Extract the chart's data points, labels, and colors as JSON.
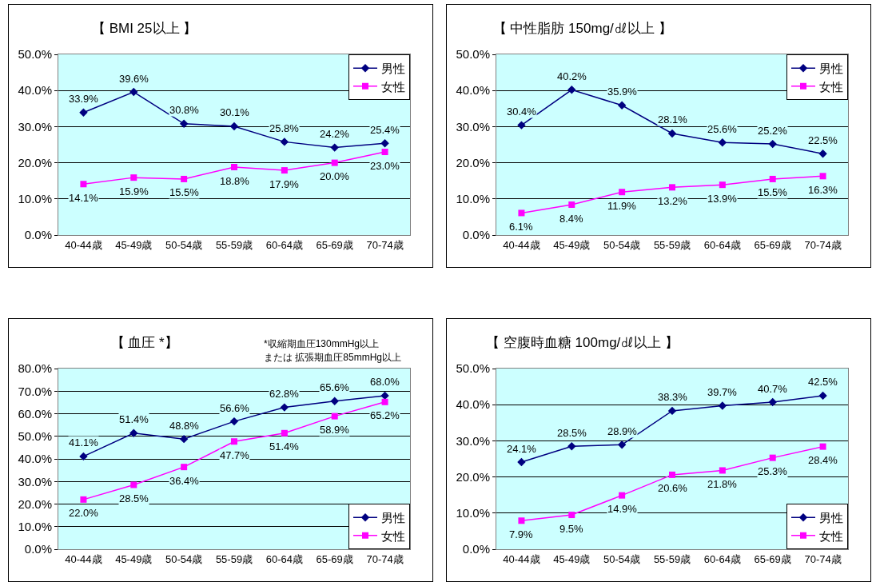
{
  "chart_data": [
    {
      "type": "line",
      "title": "【 BMI 25以上 】",
      "categories": [
        "40-44歳",
        "45-49歳",
        "50-54歳",
        "55-59歳",
        "60-64歳",
        "65-69歳",
        "70-74歳"
      ],
      "series": [
        {
          "name": "男性",
          "color": "#000080",
          "marker": "diamond",
          "values": [
            33.9,
            39.6,
            30.8,
            30.1,
            25.8,
            24.2,
            25.4
          ],
          "value_labels": [
            "33.9%",
            "39.6%",
            "30.8%",
            "30.1%",
            "25.8%",
            "24.2%",
            "25.4%"
          ]
        },
        {
          "name": "女性",
          "color": "#ff00ff",
          "marker": "square",
          "values": [
            14.1,
            15.9,
            15.5,
            18.8,
            17.9,
            20.0,
            23.0
          ],
          "value_labels": [
            "14.1%",
            "15.9%",
            "15.5%",
            "18.8%",
            "17.9%",
            "20.0%",
            "23.0%"
          ]
        }
      ],
      "ylim": [
        0,
        50
      ],
      "yticks": [
        {
          "value": 0,
          "label": "0.0%"
        },
        {
          "value": 10,
          "label": "10.0%"
        },
        {
          "value": 20,
          "label": "20.0%"
        },
        {
          "value": 30,
          "label": "30.0%"
        },
        {
          "value": 40,
          "label": "40.0%"
        },
        {
          "value": 50,
          "label": "50.0%"
        }
      ],
      "grid": "y",
      "legend": "top right",
      "line_style": "solid"
    },
    {
      "type": "line",
      "title": "【 中性脂肪 150mg/㎗以上 】",
      "categories": [
        "40-44歳",
        "45-49歳",
        "50-54歳",
        "55-59歳",
        "60-64歳",
        "65-69歳",
        "70-74歳"
      ],
      "series": [
        {
          "name": "男性",
          "color": "#000080",
          "marker": "diamond",
          "values": [
            30.4,
            40.2,
            35.9,
            28.1,
            25.6,
            25.2,
            22.5
          ],
          "value_labels": [
            "30.4%",
            "40.2%",
            "35.9%",
            "28.1%",
            "25.6%",
            "25.2%",
            "22.5%"
          ]
        },
        {
          "name": "女性",
          "color": "#ff00ff",
          "marker": "square",
          "values": [
            6.1,
            8.4,
            11.9,
            13.2,
            13.9,
            15.5,
            16.3
          ],
          "value_labels": [
            "6.1%",
            "8.4%",
            "11.9%",
            "13.2%",
            "13.9%",
            "15.5%",
            "16.3%"
          ]
        }
      ],
      "ylim": [
        0,
        50
      ],
      "yticks": [
        {
          "value": 0,
          "label": "0.0%"
        },
        {
          "value": 10,
          "label": "10.0%"
        },
        {
          "value": 20,
          "label": "20.0%"
        },
        {
          "value": 30,
          "label": "30.0%"
        },
        {
          "value": 40,
          "label": "40.0%"
        },
        {
          "value": 50,
          "label": "50.0%"
        }
      ],
      "grid": "y",
      "legend": "top right",
      "line_style": "solid"
    },
    {
      "type": "line",
      "title": "【 血圧 *】",
      "annotations": [
        "*収縮期血圧130mmHg以上",
        "または 拡張期血圧85mmHg以上"
      ],
      "categories": [
        "40-44歳",
        "45-49歳",
        "50-54歳",
        "55-59歳",
        "60-64歳",
        "65-69歳",
        "70-74歳"
      ],
      "series": [
        {
          "name": "男性",
          "color": "#000080",
          "marker": "diamond",
          "values": [
            41.1,
            51.4,
            48.8,
            56.6,
            62.8,
            65.6,
            68.0
          ],
          "value_labels": [
            "41.1%",
            "51.4%",
            "48.8%",
            "56.6%",
            "62.8%",
            "65.6%",
            "68.0%"
          ]
        },
        {
          "name": "女性",
          "color": "#ff00ff",
          "marker": "square",
          "values": [
            22.0,
            28.5,
            36.4,
            47.7,
            51.4,
            58.9,
            65.2
          ],
          "value_labels": [
            "22.0%",
            "28.5%",
            "36.4%",
            "47.7%",
            "51.4%",
            "58.9%",
            "65.2%"
          ]
        }
      ],
      "ylim": [
        0,
        80
      ],
      "yticks": [
        {
          "value": 0,
          "label": "0.0%"
        },
        {
          "value": 10,
          "label": "10.0%"
        },
        {
          "value": 20,
          "label": "20.0%"
        },
        {
          "value": 30,
          "label": "30.0%"
        },
        {
          "value": 40,
          "label": "40.0%"
        },
        {
          "value": 50,
          "label": "50.0%"
        },
        {
          "value": 60,
          "label": "60.0%"
        },
        {
          "value": 70,
          "label": "70.0%"
        },
        {
          "value": 80,
          "label": "80.0%"
        }
      ],
      "grid": "y",
      "legend": "bottom right",
      "line_style": "solid"
    },
    {
      "type": "line",
      "title": "【 空腹時血糖 100mg/㎗以上 】",
      "categories": [
        "40-44歳",
        "45-49歳",
        "50-54歳",
        "55-59歳",
        "60-64歳",
        "65-69歳",
        "70-74歳"
      ],
      "series": [
        {
          "name": "男性",
          "color": "#000080",
          "marker": "diamond",
          "values": [
            24.1,
            28.5,
            28.9,
            38.3,
            39.7,
            40.7,
            42.5
          ],
          "value_labels": [
            "24.1%",
            "28.5%",
            "28.9%",
            "38.3%",
            "39.7%",
            "40.7%",
            "42.5%"
          ]
        },
        {
          "name": "女性",
          "color": "#ff00ff",
          "marker": "square",
          "values": [
            7.9,
            9.5,
            14.9,
            20.6,
            21.8,
            25.3,
            28.4
          ],
          "value_labels": [
            "7.9%",
            "9.5%",
            "14.9%",
            "20.6%",
            "21.8%",
            "25.3%",
            "28.4%"
          ]
        }
      ],
      "ylim": [
        0,
        50
      ],
      "yticks": [
        {
          "value": 0,
          "label": "0.0%"
        },
        {
          "value": 10,
          "label": "10.0%"
        },
        {
          "value": 20,
          "label": "20.0%"
        },
        {
          "value": 30,
          "label": "30.0%"
        },
        {
          "value": 40,
          "label": "40.0%"
        },
        {
          "value": 50,
          "label": "50.0%"
        }
      ],
      "grid": "y",
      "legend": "bottom right",
      "line_style": "solid"
    }
  ]
}
